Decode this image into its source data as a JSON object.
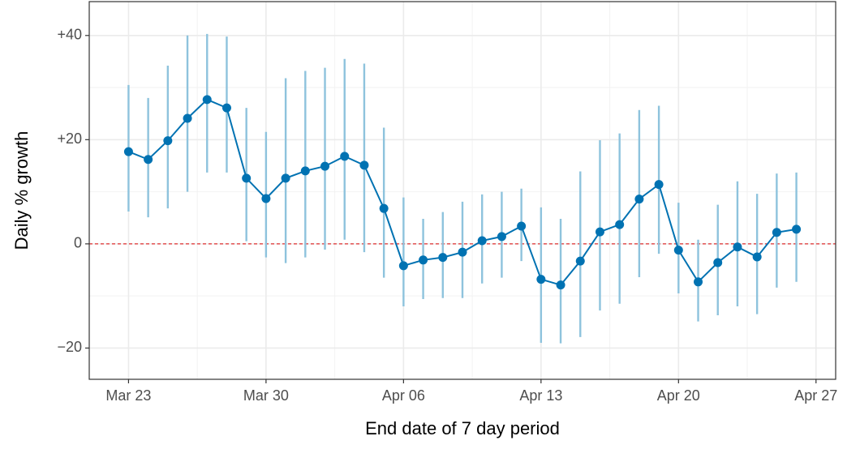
{
  "chart_data": {
    "type": "line",
    "x_axis_label": "End date of 7 day period",
    "y_axis_label": "Daily % growth",
    "x": [
      "Mar 23",
      "Mar 24",
      "Mar 25",
      "Mar 26",
      "Mar 27",
      "Mar 28",
      "Mar 29",
      "Mar 30",
      "Mar 31",
      "Apr 01",
      "Apr 02",
      "Apr 03",
      "Apr 04",
      "Apr 05",
      "Apr 06",
      "Apr 07",
      "Apr 08",
      "Apr 09",
      "Apr 10",
      "Apr 11",
      "Apr 12",
      "Apr 13",
      "Apr 14",
      "Apr 15",
      "Apr 16",
      "Apr 17",
      "Apr 18",
      "Apr 19",
      "Apr 20",
      "Apr 21",
      "Apr 22",
      "Apr 23",
      "Apr 24",
      "Apr 25",
      "Apr 26"
    ],
    "values": [
      17.7,
      16.2,
      19.8,
      24.1,
      27.7,
      26.1,
      12.6,
      8.7,
      12.6,
      14.0,
      14.9,
      16.8,
      15.1,
      6.8,
      -4.2,
      -3.1,
      -2.6,
      -1.6,
      0.6,
      1.4,
      3.4,
      -6.8,
      -7.9,
      -3.3,
      2.3,
      3.7,
      8.6,
      11.4,
      -1.2,
      -7.3,
      -3.6,
      -0.6,
      -2.5,
      2.2,
      2.8
    ],
    "lower": [
      6.2,
      5.1,
      6.8,
      10.0,
      13.7,
      13.7,
      0.5,
      -2.6,
      -3.7,
      -2.6,
      -1.1,
      0.8,
      -1.6,
      -6.5,
      -12.0,
      -10.6,
      -10.4,
      -10.4,
      -7.6,
      -6.5,
      -3.3,
      -19.0,
      -19.1,
      -17.9,
      -12.8,
      -11.5,
      -6.4,
      -1.9,
      -9.5,
      -14.9,
      -13.7,
      -12.0,
      -13.5,
      -8.4,
      -7.3
    ],
    "upper": [
      30.5,
      28.0,
      34.2,
      40.0,
      40.3,
      39.8,
      26.1,
      21.5,
      31.8,
      33.2,
      33.8,
      35.5,
      34.6,
      22.3,
      8.9,
      4.8,
      6.1,
      8.1,
      9.5,
      10.0,
      10.6,
      7.0,
      4.8,
      13.9,
      19.9,
      21.2,
      25.7,
      26.5,
      7.9,
      0.8,
      7.5,
      12.0,
      9.6,
      13.5,
      13.7
    ],
    "color": "#0072b2",
    "error_bar_color": "#8ec3dd",
    "xlim": [
      "Mar 21",
      "Apr 28"
    ],
    "xticks": [
      "Mar 23",
      "Mar 30",
      "Apr 06",
      "Apr 13",
      "Apr 20",
      "Apr 27"
    ],
    "ylim": [
      -26,
      46.5
    ],
    "yticks": [
      {
        "value": -20,
        "label": "−20"
      },
      0,
      {
        "value": 20,
        "label": "+20"
      },
      {
        "value": 40,
        "label": "+40"
      }
    ],
    "grid": true,
    "minor_grid": true,
    "reference_line": {
      "value": 0,
      "color": "#e03030"
    }
  }
}
